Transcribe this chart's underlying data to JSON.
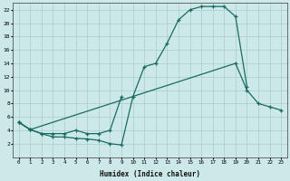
{
  "xlabel": "Humidex (Indice chaleur)",
  "background_color": "#cce8e8",
  "grid_color": "#aacccc",
  "line_color": "#1a6b60",
  "xlim": [
    -0.5,
    23.5
  ],
  "ylim": [
    0,
    23
  ],
  "xticks": [
    0,
    1,
    2,
    3,
    4,
    5,
    6,
    7,
    8,
    9,
    10,
    11,
    12,
    13,
    14,
    15,
    16,
    17,
    18,
    19,
    20,
    21,
    22,
    23
  ],
  "yticks": [
    2,
    4,
    6,
    8,
    10,
    12,
    14,
    16,
    18,
    20,
    22
  ],
  "line1_x": [
    0,
    1,
    2,
    3,
    4,
    5,
    6,
    7,
    8,
    9,
    10,
    11,
    12,
    13,
    14,
    15,
    16,
    17,
    18,
    19,
    20
  ],
  "line1_y": [
    5.2,
    4.1,
    3.5,
    3.0,
    3.0,
    2.8,
    2.7,
    2.5,
    2.0,
    1.8,
    9.0,
    13.5,
    14.0,
    17.0,
    20.5,
    22.0,
    22.5,
    22.5,
    22.5,
    21.0,
    10.5
  ],
  "line2_x": [
    0,
    1,
    2,
    3,
    4,
    5,
    6,
    7,
    8,
    9
  ],
  "line2_y": [
    5.2,
    4.1,
    3.5,
    3.5,
    3.5,
    4.0,
    3.5,
    3.5,
    4.0,
    9.0
  ],
  "line3_x": [
    0,
    1,
    19,
    20,
    21,
    22,
    23
  ],
  "line3_y": [
    5.2,
    4.1,
    14.0,
    10.0,
    8.0,
    7.5,
    7.0
  ]
}
